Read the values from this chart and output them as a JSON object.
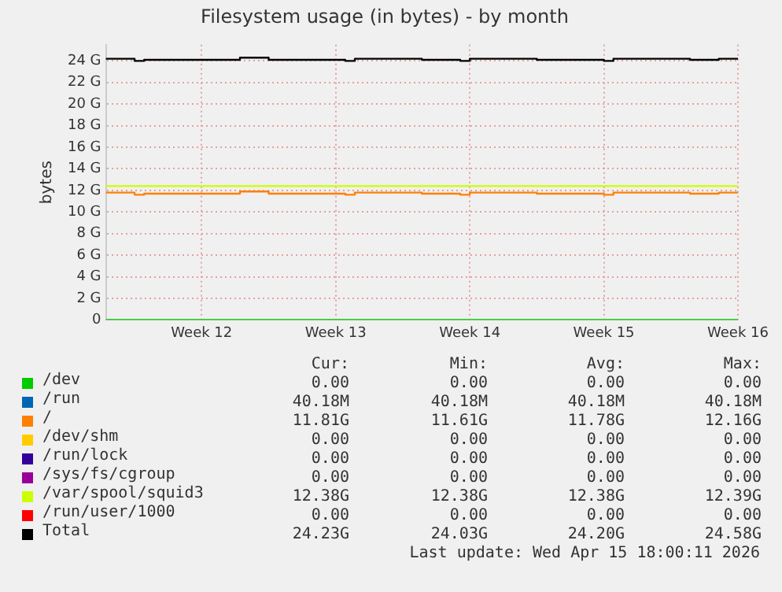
{
  "chart_data": {
    "type": "step",
    "title": "Filesystem usage (in bytes) - by month",
    "ylabel": "bytes",
    "categories": [
      null,
      null,
      null,
      null,
      null,
      null,
      null,
      null,
      null,
      null,
      "Week 12",
      null,
      null,
      null,
      null,
      null,
      null,
      null,
      null,
      null,
      null,
      null,
      null,
      null,
      "Week 13",
      null,
      null,
      null,
      null,
      null,
      null,
      null,
      null,
      null,
      null,
      null,
      null,
      null,
      "Week 14",
      null,
      null,
      null,
      null,
      null,
      null,
      null,
      null,
      null,
      null,
      null,
      null,
      null,
      "Week 15",
      null,
      null,
      null,
      null,
      null,
      null,
      null,
      null,
      null,
      null,
      null,
      null,
      null,
      "Week 16"
    ],
    "ylim": [
      0,
      25.5
    ],
    "yticks": [
      0,
      {
        "value": 2,
        "label": "2 G"
      },
      {
        "value": 4,
        "label": "4 G"
      },
      {
        "value": 6,
        "label": "6 G"
      },
      {
        "value": 8,
        "label": "8 G"
      },
      {
        "value": 10,
        "label": "10 G"
      },
      {
        "value": 12,
        "label": "12 G"
      },
      {
        "value": 14,
        "label": "14 G"
      },
      {
        "value": 16,
        "label": "16 G"
      },
      {
        "value": 18,
        "label": "18 G"
      },
      {
        "value": 20,
        "label": "20 G"
      },
      {
        "value": 22,
        "label": "22 G"
      },
      {
        "value": 24,
        "label": "24 G"
      }
    ],
    "grid": true,
    "legend": "bottom",
    "marker": "none",
    "line_style": "solid",
    "series": [
      {
        "name": "/dev",
        "color": "#00cc00",
        "values": [
          0,
          0,
          0,
          0,
          0,
          0,
          0,
          0,
          0,
          0,
          0,
          0,
          0,
          0,
          0,
          0,
          0,
          0,
          0,
          0,
          0,
          0,
          0,
          0,
          0,
          0,
          0,
          0,
          0,
          0,
          0,
          0,
          0,
          0,
          0,
          0,
          0,
          0,
          0,
          0,
          0,
          0,
          0,
          0,
          0,
          0,
          0,
          0,
          0,
          0,
          0,
          0,
          0,
          0,
          0,
          0,
          0,
          0,
          0,
          0,
          0,
          0,
          0,
          0,
          0,
          0,
          0
        ]
      },
      {
        "name": "/run",
        "color": "#0066b3",
        "values": [
          null,
          null,
          null,
          null,
          null,
          null,
          null,
          null,
          null,
          null,
          null,
          null,
          null,
          null,
          null,
          null,
          null,
          null,
          null,
          null,
          null,
          null,
          null,
          null,
          null,
          null,
          null,
          null,
          null,
          null,
          null,
          null,
          null,
          null,
          null,
          null,
          null,
          null,
          null,
          null,
          null,
          null,
          null,
          null,
          null,
          null,
          null,
          null,
          null,
          null,
          null,
          null,
          null,
          null,
          null,
          null,
          null,
          null,
          null,
          null,
          null,
          null,
          null,
          null,
          null,
          null,
          null
        ]
      },
      {
        "name": "/",
        "color": "#ff8000",
        "values": [
          11.8,
          11.8,
          11.8,
          11.8,
          11.6,
          11.7,
          11.7,
          11.7,
          11.7,
          11.7,
          11.7,
          11.7,
          11.7,
          11.7,
          11.7,
          11.9,
          11.9,
          11.9,
          11.7,
          11.7,
          11.7,
          11.7,
          11.7,
          11.7,
          11.7,
          11.7,
          11.6,
          11.8,
          11.8,
          11.8,
          11.8,
          11.8,
          11.8,
          11.8,
          11.7,
          11.7,
          11.7,
          11.7,
          11.6,
          11.8,
          11.8,
          11.8,
          11.8,
          11.8,
          11.8,
          11.8,
          11.7,
          11.7,
          11.7,
          11.7,
          11.7,
          11.7,
          11.7,
          11.6,
          11.8,
          11.8,
          11.8,
          11.8,
          11.8,
          11.8,
          11.8,
          11.8,
          11.7,
          11.7,
          11.7,
          11.8,
          11.8
        ]
      },
      {
        "name": "/dev/shm",
        "color": "#ffcc00",
        "values": [
          null,
          null,
          null,
          null,
          null,
          null,
          null,
          null,
          null,
          null,
          null,
          null,
          null,
          null,
          null,
          null,
          null,
          null,
          null,
          null,
          null,
          null,
          null,
          null,
          null,
          null,
          null,
          null,
          null,
          null,
          null,
          null,
          null,
          null,
          null,
          null,
          null,
          null,
          null,
          null,
          null,
          null,
          null,
          null,
          null,
          null,
          null,
          null,
          null,
          null,
          null,
          null,
          null,
          null,
          null,
          null,
          null,
          null,
          null,
          null,
          null,
          null,
          null,
          null,
          null,
          null,
          null
        ]
      },
      {
        "name": "/run/lock",
        "color": "#330099",
        "values": [
          null,
          null,
          null,
          null,
          null,
          null,
          null,
          null,
          null,
          null,
          null,
          null,
          null,
          null,
          null,
          null,
          null,
          null,
          null,
          null,
          null,
          null,
          null,
          null,
          null,
          null,
          null,
          null,
          null,
          null,
          null,
          null,
          null,
          null,
          null,
          null,
          null,
          null,
          null,
          null,
          null,
          null,
          null,
          null,
          null,
          null,
          null,
          null,
          null,
          null,
          null,
          null,
          null,
          null,
          null,
          null,
          null,
          null,
          null,
          null,
          null,
          null,
          null,
          null,
          null,
          null,
          null
        ]
      },
      {
        "name": "/sys/fs/cgroup",
        "color": "#990099",
        "values": [
          null,
          null,
          null,
          null,
          null,
          null,
          null,
          null,
          null,
          null,
          null,
          null,
          null,
          null,
          null,
          null,
          null,
          null,
          null,
          null,
          null,
          null,
          null,
          null,
          null,
          null,
          null,
          null,
          null,
          null,
          null,
          null,
          null,
          null,
          null,
          null,
          null,
          null,
          null,
          null,
          null,
          null,
          null,
          null,
          null,
          null,
          null,
          null,
          null,
          null,
          null,
          null,
          null,
          null,
          null,
          null,
          null,
          null,
          null,
          null,
          null,
          null,
          null,
          null,
          null,
          null,
          null
        ]
      },
      {
        "name": "/var/spool/squid3",
        "color": "#ccff00",
        "values": [
          12.4,
          12.4,
          12.4,
          12.4,
          12.4,
          12.4,
          12.4,
          12.4,
          12.4,
          12.4,
          12.4,
          12.4,
          12.4,
          12.4,
          12.4,
          12.4,
          12.4,
          12.4,
          12.4,
          12.4,
          12.4,
          12.4,
          12.4,
          12.4,
          12.4,
          12.4,
          12.4,
          12.4,
          12.4,
          12.4,
          12.4,
          12.4,
          12.4,
          12.4,
          12.4,
          12.4,
          12.4,
          12.4,
          12.4,
          12.4,
          12.4,
          12.4,
          12.4,
          12.4,
          12.4,
          12.4,
          12.4,
          12.4,
          12.4,
          12.4,
          12.4,
          12.4,
          12.4,
          12.4,
          12.4,
          12.4,
          12.4,
          12.4,
          12.4,
          12.4,
          12.4,
          12.4,
          12.4,
          12.4,
          12.4,
          12.4,
          12.4
        ]
      },
      {
        "name": "/run/user/1000",
        "color": "#ff0000",
        "values": [
          null,
          null,
          null,
          null,
          null,
          null,
          null,
          null,
          null,
          null,
          null,
          null,
          null,
          null,
          null,
          null,
          null,
          null,
          null,
          null,
          null,
          null,
          null,
          null,
          null,
          null,
          null,
          null,
          null,
          null,
          null,
          null,
          null,
          null,
          null,
          null,
          null,
          null,
          null,
          null,
          null,
          null,
          null,
          null,
          null,
          null,
          null,
          null,
          null,
          null,
          null,
          null,
          null,
          null,
          null,
          null,
          null,
          null,
          null,
          null,
          null,
          null,
          null,
          null,
          null,
          null,
          null
        ]
      },
      {
        "name": "Total",
        "color": "#000000",
        "values": [
          24.2,
          24.2,
          24.2,
          24.2,
          24.0,
          24.1,
          24.1,
          24.1,
          24.1,
          24.1,
          24.1,
          24.1,
          24.1,
          24.1,
          24.1,
          24.3,
          24.3,
          24.3,
          24.1,
          24.1,
          24.1,
          24.1,
          24.1,
          24.1,
          24.1,
          24.1,
          24.0,
          24.2,
          24.2,
          24.2,
          24.2,
          24.2,
          24.2,
          24.2,
          24.1,
          24.1,
          24.1,
          24.1,
          24.0,
          24.2,
          24.2,
          24.2,
          24.2,
          24.2,
          24.2,
          24.2,
          24.1,
          24.1,
          24.1,
          24.1,
          24.1,
          24.1,
          24.1,
          24.0,
          24.2,
          24.2,
          24.2,
          24.2,
          24.2,
          24.2,
          24.2,
          24.2,
          24.1,
          24.1,
          24.1,
          24.2,
          24.2
        ]
      }
    ],
    "annotations": [
      "Cur:",
      "Min:",
      "Avg:",
      "Max:",
      "0.00",
      "0.00",
      "0.00",
      "0.00",
      "40.18M",
      "40.18M",
      "40.18M",
      "40.18M",
      "11.81G",
      "11.61G",
      "11.78G",
      "12.16G",
      "0.00",
      "0.00",
      "0.00",
      "0.00",
      "0.00",
      "0.00",
      "0.00",
      "0.00",
      "0.00",
      "0.00",
      "0.00",
      "0.00",
      "12.38G",
      "12.38G",
      "12.38G",
      "12.39G",
      "0.00",
      "0.00",
      "0.00",
      "0.00",
      "24.23G",
      "24.03G",
      "24.20G",
      "24.58G",
      "Last update: Wed Apr 15 18:00:11 2026"
    ]
  }
}
